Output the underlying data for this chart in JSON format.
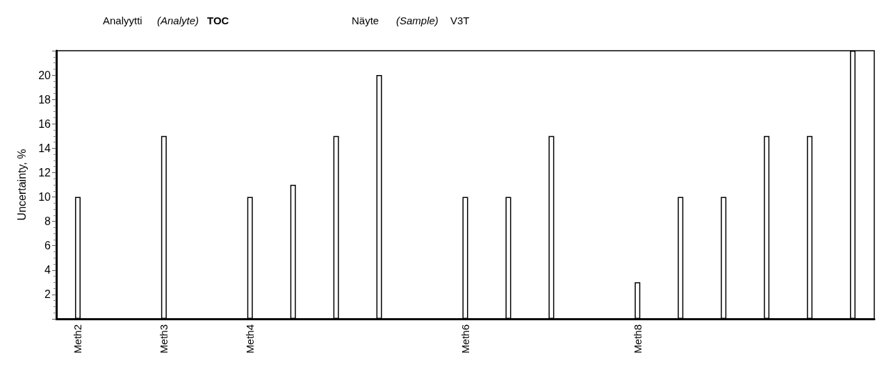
{
  "chart_data": {
    "type": "bar",
    "annotations": [
      "Analyytti",
      "(Analyte)",
      "TOC",
      "Näyte",
      "(Sample)",
      "V3T"
    ],
    "ylabel": "Uncertainty, %",
    "categories": [
      "Meth2",
      null,
      "Meth3",
      null,
      "Meth4",
      null,
      null,
      null,
      null,
      "Meth6",
      null,
      null,
      null,
      "Meth8",
      null,
      null,
      null,
      null,
      null
    ],
    "values": [
      10,
      null,
      15,
      null,
      10,
      11,
      15,
      20,
      null,
      10,
      10,
      15,
      null,
      3,
      10,
      10,
      15,
      15,
      22
    ],
    "color": "#ffffff",
    "ylim": [
      0,
      22
    ],
    "yticks": [
      2,
      4,
      6,
      8,
      10,
      12,
      14,
      16,
      18,
      20
    ],
    "grid": false
  }
}
